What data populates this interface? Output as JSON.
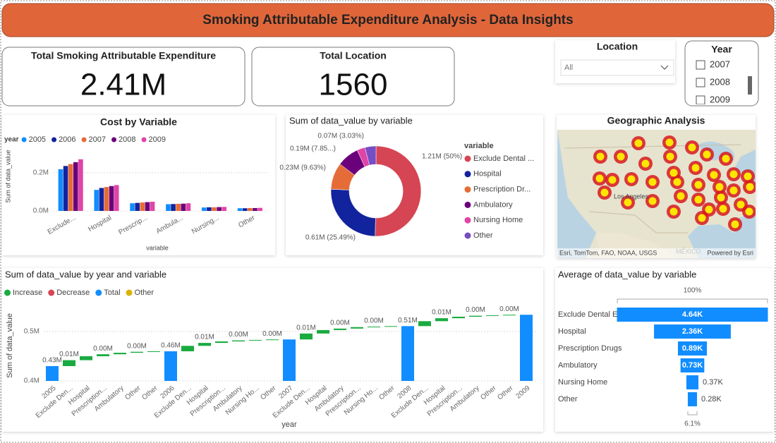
{
  "header": {
    "title": "Smoking Attributable Expenditure Analysis -  Data Insights"
  },
  "cards": [
    {
      "label": "Total Smoking Attributable Expenditure",
      "value": "2.41M"
    },
    {
      "label": "Total Location",
      "value": 1560
    }
  ],
  "slicers": {
    "location": {
      "title": "Location",
      "selected": "All"
    },
    "year": {
      "title": "Year",
      "options": [
        "2007",
        "2008",
        "2009"
      ]
    }
  },
  "map": {
    "title": "Geographic Analysis",
    "labels": [
      "Los Angeles",
      "MÉXICO"
    ],
    "credits": [
      "Esri, TomTom, FAO, NOAA, USGS",
      "Powered by Esri"
    ]
  },
  "chart_data": [
    {
      "type": "bar",
      "title": "Cost by Variable",
      "legend_title": "year",
      "categories": [
        "Exclude...",
        "Hospital",
        "Prescrip...",
        "Ambula...",
        "Nursing...",
        "Other"
      ],
      "series": [
        {
          "name": "2005",
          "color": "#118DFF",
          "values": [
            218000,
            110000,
            40000,
            35000,
            18000,
            14000
          ]
        },
        {
          "name": "2006",
          "color": "#12239E",
          "values": [
            235000,
            120000,
            42000,
            36000,
            19000,
            14000
          ]
        },
        {
          "name": "2007",
          "color": "#E66C37",
          "values": [
            245000,
            125000,
            44000,
            37000,
            19000,
            15000
          ]
        },
        {
          "name": "2008",
          "color": "#6B007B",
          "values": [
            255000,
            130000,
            46000,
            38000,
            20000,
            15000
          ]
        },
        {
          "name": "2009",
          "color": "#E044A7",
          "values": [
            270000,
            135000,
            48000,
            40000,
            21000,
            16000
          ]
        }
      ],
      "x_label": "variable",
      "y_label": "Sum of data_value",
      "ylim": [
        0,
        380000
      ],
      "yticks": [
        {
          "value": 0,
          "label": "0.0M"
        },
        {
          "value": 200000,
          "label": "0.2M"
        }
      ],
      "grid": true
    },
    {
      "type": "donut",
      "title": "Sum of data_value by variable",
      "legend_title": "variable",
      "categories": [
        "Exclude Dental ...",
        "Hospital",
        "Prescription Dr...",
        "Ambulatory",
        "Nursing Home",
        "Other"
      ],
      "colors": [
        "#D64554",
        "#12239E",
        "#E66C37",
        "#6B007B",
        "#E044A7",
        "#744EC2"
      ],
      "values": [
        1210000,
        610000,
        230000,
        190000,
        70000,
        95000
      ],
      "value_labels": [
        "1.21M (50%)",
        "0.61M (25.49%)",
        "0.23M (9.63%)",
        "0.19M (7.85...)",
        "0.07M (3.03%)",
        null
      ]
    },
    {
      "type": "waterfall",
      "title": "Sum of data_value by year and variable",
      "legend": [
        {
          "name": "Increase",
          "color": "#1AAB40"
        },
        {
          "name": "Decrease",
          "color": "#D64554"
        },
        {
          "name": "Total",
          "color": "#118DFF"
        },
        {
          "name": "Other",
          "color": "#D9B300"
        }
      ],
      "categories": [
        "2005",
        "Exclude Den...",
        "Hospital",
        "Prescription...",
        "Ambulatory",
        "Other",
        "Other",
        "2006",
        "Exclude Den...",
        "Hospital",
        "Prescription...",
        "Ambulatory",
        "Nursing Ho...",
        "Other",
        "2007",
        "Exclude Den...",
        "Hospital",
        "Ambulatory",
        "Prescription...",
        "Nursing Ho...",
        "Other",
        "2008",
        "Exclude Den...",
        "Hospital",
        "Prescription...",
        "Ambulatory",
        "Other",
        "Other",
        "2009"
      ],
      "values": [
        430000,
        12000,
        8000,
        4000,
        3000,
        2000,
        1000,
        460000,
        11000,
        6000,
        3000,
        2000,
        1000,
        1000,
        484000,
        12000,
        7000,
        3000,
        3000,
        1000,
        1000,
        511000,
        10000,
        6000,
        3000,
        2000,
        1000,
        1000,
        534000
      ],
      "kinds": [
        2,
        0,
        0,
        0,
        0,
        0,
        0,
        2,
        0,
        0,
        0,
        0,
        0,
        0,
        2,
        0,
        0,
        0,
        0,
        0,
        0,
        2,
        0,
        0,
        0,
        0,
        0,
        0,
        2
      ],
      "value_labels": [
        "0.43M",
        "0.01M",
        null,
        "0.00M",
        null,
        "0.00M",
        null,
        "0.46M",
        null,
        "0.01M",
        null,
        "0.00M",
        null,
        "0.00M",
        null,
        "0.01M",
        null,
        "0.00M",
        null,
        "0.00M",
        null,
        "0.51M",
        null,
        "0.01M",
        null,
        "0.00M",
        null,
        "0.00M",
        null
      ],
      "x_label": "year",
      "y_label": "Sum of data_value",
      "ylim": [
        400000,
        545000
      ],
      "yticks": [
        {
          "value": 400000,
          "label": "0.4M"
        },
        {
          "value": 500000,
          "label": "0.5M"
        }
      ],
      "grid": true
    },
    {
      "type": "funnel",
      "title": "Average of data_value by variable",
      "categories": [
        "Exclude Dental E",
        "Hospital",
        "Prescription Drugs",
        "Ambulatory",
        "Nursing Home",
        "Other"
      ],
      "values": [
        4640,
        2360,
        890,
        730,
        370,
        283
      ],
      "value_labels": [
        "4.64K",
        "2.36K",
        "0.89K",
        "0.73K",
        "0.37K",
        "0.28K"
      ],
      "color": "#118DFF",
      "top_label": "100%",
      "bottom_label": "6.1%"
    }
  ]
}
